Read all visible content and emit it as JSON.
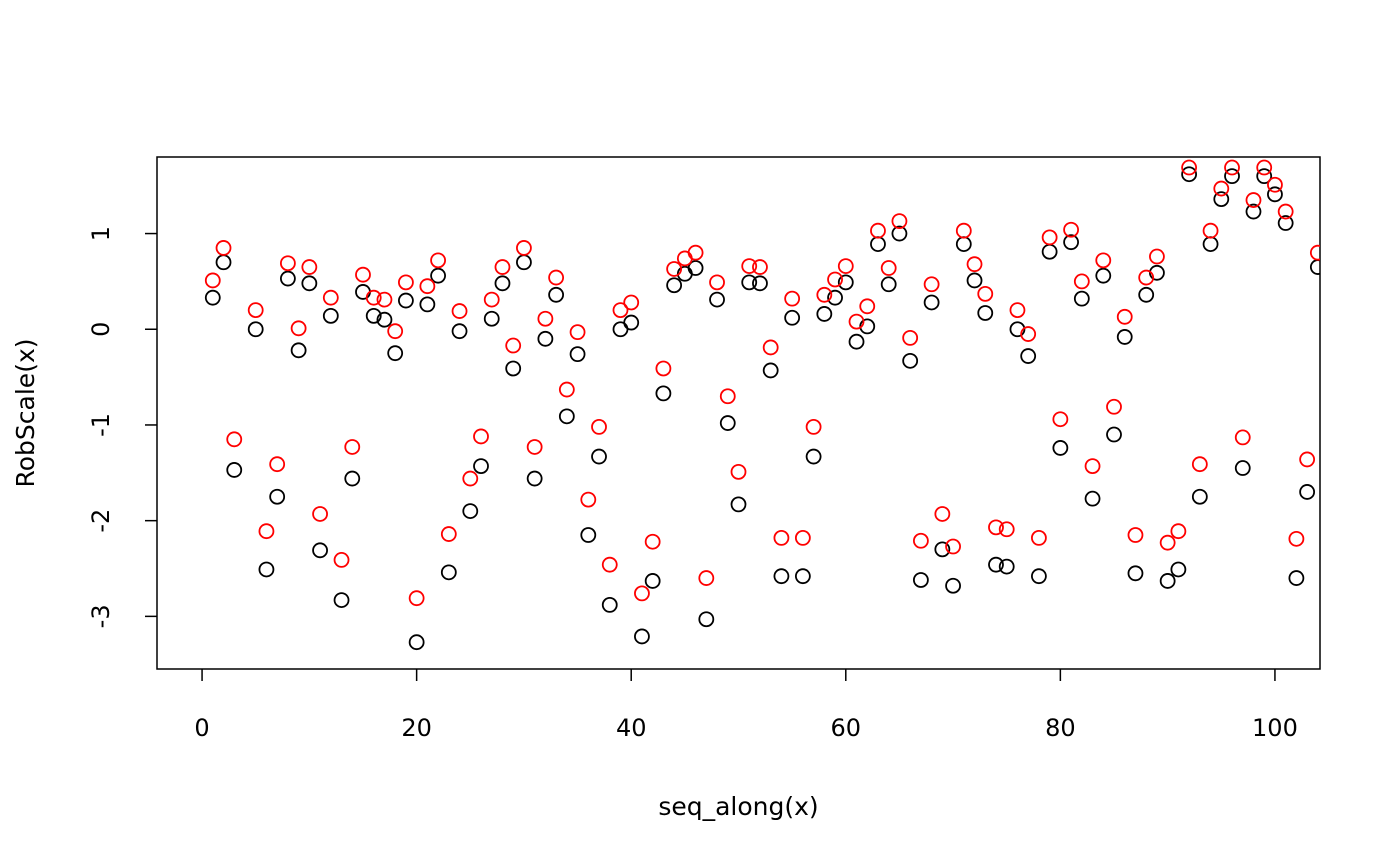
{
  "chart_data": {
    "type": "scatter",
    "title": "",
    "xlabel": "seq_along(x)",
    "ylabel": "RobScale(x)",
    "xlim": [
      -4.2,
      104.2
    ],
    "ylim": [
      -3.55,
      1.8
    ],
    "xticks": [
      0,
      20,
      40,
      60,
      80,
      100
    ],
    "yticks": [
      -3,
      -2,
      -1,
      0,
      1
    ],
    "xtick_labels": [
      "0",
      "20",
      "40",
      "60",
      "80",
      "100"
    ],
    "ytick_labels": [
      "-3",
      "-2",
      "-1",
      "0",
      "1"
    ],
    "grid": false,
    "legend": "none",
    "marker": "open-circle",
    "series": [
      {
        "color": "#000000",
        "x": [
          1,
          2,
          3,
          5,
          6,
          7,
          8,
          9,
          10,
          11,
          12,
          13,
          14,
          15,
          16,
          17,
          18,
          19,
          20,
          21,
          22,
          23,
          24,
          25,
          26,
          27,
          28,
          29,
          30,
          31,
          32,
          33,
          34,
          35,
          36,
          37,
          38,
          39,
          40,
          41,
          42,
          43,
          44,
          45,
          46,
          47,
          48,
          49,
          50,
          51,
          52,
          53,
          54,
          55,
          56,
          57,
          58,
          59,
          60,
          61,
          62,
          63,
          64,
          65,
          66,
          67,
          68,
          69,
          70,
          71,
          72,
          73,
          74,
          75,
          76,
          77,
          78,
          79,
          80,
          81,
          82,
          83,
          84,
          85,
          86,
          87,
          88,
          89,
          90,
          91,
          92,
          93,
          94,
          95,
          96,
          97,
          98,
          99,
          100,
          101,
          102,
          103,
          104
        ],
        "y": [
          0.33,
          0.7,
          -1.47,
          0.0,
          -2.51,
          -1.75,
          0.53,
          -0.22,
          0.48,
          -2.31,
          0.14,
          -2.83,
          -1.56,
          0.39,
          0.14,
          0.1,
          -0.25,
          0.3,
          -3.27,
          0.26,
          0.56,
          -2.54,
          -0.02,
          -1.9,
          -1.43,
          0.11,
          0.48,
          -0.41,
          0.7,
          -1.56,
          -0.1,
          0.36,
          -0.91,
          -0.26,
          -2.15,
          -1.33,
          -2.88,
          0.0,
          0.07,
          -3.21,
          -2.63,
          -0.67,
          0.46,
          0.58,
          0.64,
          -3.03,
          0.31,
          -0.98,
          -1.83,
          0.49,
          0.48,
          -0.43,
          -2.58,
          0.12,
          -2.58,
          -1.33,
          0.16,
          0.33,
          0.49,
          -0.13,
          0.03,
          0.89,
          0.47,
          1.0,
          -0.33,
          -2.62,
          0.28,
          -2.3,
          -2.68,
          0.89,
          0.51,
          0.17,
          -2.46,
          -2.48,
          0.0,
          -0.28,
          -2.58,
          0.81,
          -1.24,
          0.91,
          0.32,
          -1.77,
          0.56,
          -1.1,
          -0.08,
          -2.55,
          0.36,
          0.59,
          -2.63,
          -2.51,
          1.62,
          -1.75,
          0.89,
          1.36,
          1.6,
          -1.45,
          1.23,
          1.6,
          1.41,
          1.11,
          -2.6,
          -1.7,
          0.65
        ]
      },
      {
        "color": "#ff0000",
        "x": [
          1,
          2,
          3,
          5,
          6,
          7,
          8,
          9,
          10,
          11,
          12,
          13,
          14,
          15,
          16,
          17,
          18,
          19,
          20,
          21,
          22,
          23,
          24,
          25,
          26,
          27,
          28,
          29,
          30,
          31,
          32,
          33,
          34,
          35,
          36,
          37,
          38,
          39,
          40,
          41,
          42,
          43,
          44,
          45,
          46,
          47,
          48,
          49,
          50,
          51,
          52,
          53,
          54,
          55,
          56,
          57,
          58,
          59,
          60,
          61,
          62,
          63,
          64,
          65,
          66,
          67,
          68,
          69,
          70,
          71,
          72,
          73,
          74,
          75,
          76,
          77,
          78,
          79,
          80,
          81,
          82,
          83,
          84,
          85,
          86,
          87,
          88,
          89,
          90,
          91,
          92,
          93,
          94,
          95,
          96,
          97,
          98,
          99,
          100,
          101,
          102,
          103,
          104
        ],
        "y": [
          0.51,
          0.85,
          -1.15,
          0.2,
          -2.11,
          -1.41,
          0.69,
          0.01,
          0.65,
          -1.93,
          0.33,
          -2.41,
          -1.23,
          0.57,
          0.33,
          0.31,
          -0.02,
          0.49,
          -2.81,
          0.45,
          0.72,
          -2.14,
          0.19,
          -1.56,
          -1.12,
          0.31,
          0.65,
          -0.17,
          0.85,
          -1.23,
          0.11,
          0.54,
          -0.63,
          -0.03,
          -1.78,
          -1.02,
          -2.46,
          0.2,
          0.28,
          -2.76,
          -2.22,
          -0.41,
          0.63,
          0.74,
          0.8,
          -2.6,
          0.49,
          -0.7,
          -1.49,
          0.66,
          0.65,
          -0.19,
          -2.18,
          0.32,
          -2.18,
          -1.02,
          0.36,
          0.52,
          0.66,
          0.08,
          0.24,
          1.03,
          0.64,
          1.13,
          -0.09,
          -2.21,
          0.47,
          -1.93,
          -2.27,
          1.03,
          0.68,
          0.37,
          -2.07,
          -2.09,
          0.2,
          -0.05,
          -2.18,
          0.96,
          -0.94,
          1.04,
          0.5,
          -1.43,
          0.72,
          -0.81,
          0.13,
          -2.15,
          0.54,
          0.76,
          -2.23,
          -2.11,
          1.69,
          -1.41,
          1.03,
          1.47,
          1.69,
          -1.13,
          1.35,
          1.69,
          1.51,
          1.23,
          -2.19,
          -1.36,
          0.8
        ]
      }
    ]
  }
}
